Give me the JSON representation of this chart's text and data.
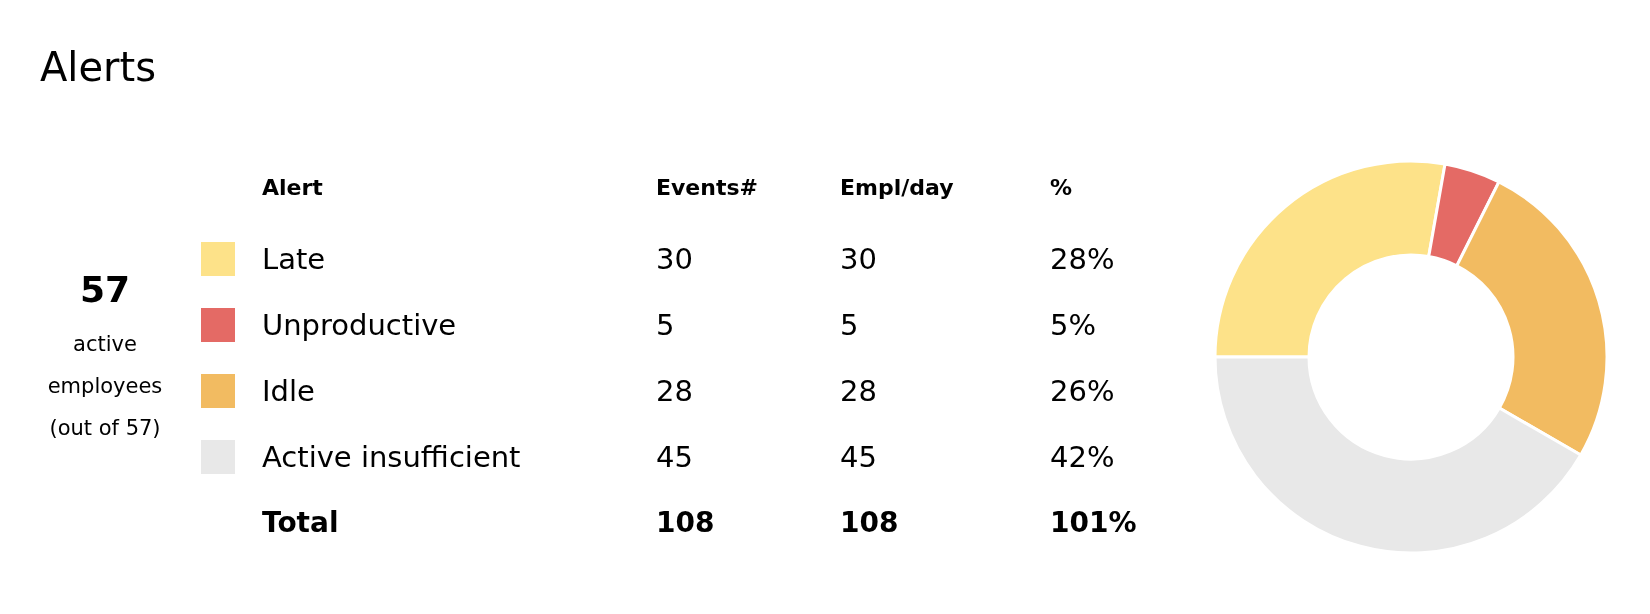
{
  "chart_data": {
    "type": "donut",
    "title": "Alerts",
    "legend_title": "Alert",
    "legend": "left",
    "categories": [
      "Late",
      "Unproductive",
      "Idle",
      "Active insufficient"
    ],
    "values": [
      30,
      5,
      28,
      45
    ],
    "colors": [
      "#fde289",
      "#e46a65",
      "#f2bb61",
      "#e8e8e8"
    ],
    "data_labels": true,
    "annotations": [
      "57",
      "active employees (out of 57)",
      "Events#",
      "Empl/day",
      "%",
      "30",
      "5",
      "28",
      "45",
      "28%",
      "5%",
      "26%",
      "42%",
      "Total",
      "108",
      "108",
      "101%"
    ]
  }
}
